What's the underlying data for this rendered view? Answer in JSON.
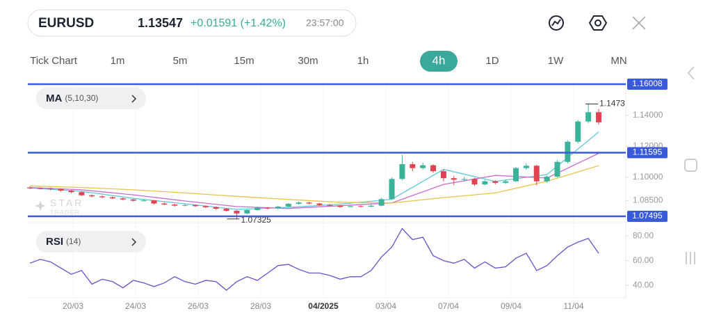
{
  "header": {
    "symbol": "EURUSD",
    "price": "1.13547",
    "change": "+0.01591 (+1.42%)",
    "time": "23:57:00"
  },
  "timeframes": [
    {
      "label": "Tick Chart",
      "selected": false
    },
    {
      "label": "1m",
      "selected": false
    },
    {
      "label": "5m",
      "selected": false
    },
    {
      "label": "15m",
      "selected": false
    },
    {
      "label": "30m",
      "selected": false
    },
    {
      "label": "1h",
      "selected": false
    },
    {
      "label": "4h",
      "selected": true
    },
    {
      "label": "1D",
      "selected": false
    },
    {
      "label": "1W",
      "selected": false
    },
    {
      "label": "MN",
      "selected": false
    }
  ],
  "chart_data": {
    "type": "candlestick",
    "up_color": "#3bb39b",
    "down_color": "#e0434f",
    "candles": [
      [
        1.0935,
        1.0942,
        1.0924,
        1.093
      ],
      [
        1.093,
        1.0936,
        1.0922,
        1.0928
      ],
      [
        1.0928,
        1.0934,
        1.0918,
        1.0925
      ],
      [
        1.0925,
        1.093,
        1.0908,
        1.0915
      ],
      [
        1.0915,
        1.092,
        1.0898,
        1.0905
      ],
      [
        1.0905,
        1.091,
        1.088,
        1.0885
      ],
      [
        1.0885,
        1.0892,
        1.0872,
        1.0878
      ],
      [
        1.0878,
        1.0885,
        1.0866,
        1.0872
      ],
      [
        1.0872,
        1.0878,
        1.086,
        1.0865
      ],
      [
        1.0865,
        1.087,
        1.0852,
        1.0858
      ],
      [
        1.0858,
        1.0862,
        1.0845,
        1.085
      ],
      [
        1.085,
        1.086,
        1.0846,
        1.0852
      ],
      [
        1.0852,
        1.0855,
        1.0826,
        1.0832
      ],
      [
        1.0832,
        1.0838,
        1.082,
        1.0825
      ],
      [
        1.0825,
        1.083,
        1.0812,
        1.0818
      ],
      [
        1.0818,
        1.0828,
        1.0814,
        1.0822
      ],
      [
        1.0822,
        1.0826,
        1.081,
        1.0815
      ],
      [
        1.0815,
        1.082,
        1.0802,
        1.0808
      ],
      [
        1.0808,
        1.0812,
        1.0792,
        1.0798
      ],
      [
        1.0798,
        1.0802,
        1.078,
        1.0785
      ],
      [
        1.0785,
        1.079,
        1.07325,
        1.0768
      ],
      [
        1.0768,
        1.0795,
        1.0762,
        1.079
      ],
      [
        1.079,
        1.0812,
        1.0785,
        1.0805
      ],
      [
        1.0805,
        1.081,
        1.0794,
        1.08
      ],
      [
        1.08,
        1.0818,
        1.0795,
        1.0812
      ],
      [
        1.0812,
        1.0836,
        1.0808,
        1.083
      ],
      [
        1.083,
        1.0845,
        1.0825,
        1.0838
      ],
      [
        1.0838,
        1.0842,
        1.0826,
        1.0832
      ],
      [
        1.0832,
        1.0836,
        1.0816,
        1.0822
      ],
      [
        1.0822,
        1.0828,
        1.0812,
        1.0818
      ],
      [
        1.0818,
        1.0822,
        1.0804,
        1.081
      ],
      [
        1.081,
        1.082,
        1.0806,
        1.0815
      ],
      [
        1.0815,
        1.082,
        1.0806,
        1.0812
      ],
      [
        1.0812,
        1.0824,
        1.0808,
        1.0818
      ],
      [
        1.0818,
        1.0868,
        1.0814,
        1.086
      ],
      [
        1.086,
        1.1,
        1.0855,
        1.099
      ],
      [
        1.099,
        1.1145,
        1.098,
        1.1085
      ],
      [
        1.1085,
        1.11,
        1.104,
        1.106
      ],
      [
        1.106,
        1.1095,
        1.105,
        1.1078
      ],
      [
        1.1078,
        1.1085,
        1.103,
        1.104
      ],
      [
        1.104,
        1.105,
        1.0975,
        1.0995
      ],
      [
        1.0995,
        1.101,
        1.095,
        1.0985
      ],
      [
        1.0985,
        1.1005,
        1.0975,
        1.099
      ],
      [
        1.099,
        1.0998,
        1.0945,
        1.0955
      ],
      [
        1.0955,
        1.0985,
        1.0948,
        1.0975
      ],
      [
        1.0975,
        1.0982,
        1.0955,
        1.0965
      ],
      [
        1.0965,
        1.0985,
        1.0958,
        1.0975
      ],
      [
        1.0975,
        1.1068,
        1.097,
        1.106
      ],
      [
        1.106,
        1.109,
        1.105,
        1.1075
      ],
      [
        1.1075,
        1.1082,
        1.095,
        1.0975
      ],
      [
        1.0975,
        1.1012,
        1.0965,
        1.1005
      ],
      [
        1.1005,
        1.111,
        1.0998,
        1.11
      ],
      [
        1.11,
        1.124,
        1.109,
        1.123
      ],
      [
        1.123,
        1.137,
        1.122,
        1.136
      ],
      [
        1.136,
        1.1473,
        1.135,
        1.142
      ],
      [
        1.142,
        1.144,
        1.134,
        1.1355
      ]
    ],
    "ylim": [
      1.0727,
      1.1614
    ],
    "yticks": [
      {
        "value": 1.14,
        "label": "1.14000"
      },
      {
        "value": 1.12,
        "label": "1.12000"
      },
      {
        "value": 1.1,
        "label": "1.10000"
      },
      {
        "value": 1.085,
        "label": "1.08500"
      }
    ],
    "levels": [
      1.16008,
      1.11595,
      1.07495
    ],
    "level_color": "#3a5bd9",
    "high_label": 1.1473,
    "low_label": 1.07325,
    "dates": [
      "20/03",
      "24/03",
      "26/03",
      "28/03",
      {
        "label": "04/2025",
        "bold": true
      },
      "03/04",
      "07/04",
      "09/04",
      "11/04"
    ],
    "watermark": [
      "STAR",
      "TRADER"
    ],
    "ma": {
      "name": "MA",
      "params": "(5,10,30)",
      "x": [
        0,
        5,
        10,
        15,
        20,
        25,
        30,
        35,
        40,
        45,
        50,
        55
      ],
      "series": [
        {
          "color": "#5cc8d8",
          "values": [
            1.0932,
            1.091,
            1.0865,
            1.083,
            1.0794,
            1.0807,
            1.0828,
            1.0859,
            1.1052,
            1.0974,
            1.1018,
            1.1293
          ]
        },
        {
          "color": "#c86ad0",
          "values": [
            1.0935,
            1.092,
            1.0888,
            1.0848,
            1.0812,
            1.08,
            1.0818,
            1.0836,
            1.0955,
            1.1013,
            1.0996,
            1.1155
          ]
        },
        {
          "color": "#e8c44a",
          "values": [
            1.0945,
            1.0935,
            1.092,
            1.09,
            1.0878,
            1.0858,
            1.084,
            1.0835,
            1.087,
            1.09,
            1.0975,
            1.1075
          ]
        }
      ]
    },
    "rsi": {
      "name": "RSI",
      "params": "(14)",
      "color": "#6a4fc8",
      "ylim": [
        30,
        88
      ],
      "yticks": [
        {
          "value": 80,
          "label": "80.00"
        },
        {
          "value": 60,
          "label": "60.00"
        },
        {
          "value": 40,
          "label": "40.00"
        }
      ],
      "values": [
        58,
        61,
        59,
        54,
        49,
        52,
        41,
        45,
        43,
        38,
        44,
        42,
        39,
        42,
        47,
        43,
        41,
        44,
        43,
        36,
        43,
        47,
        44,
        50,
        56,
        57,
        53,
        50,
        50,
        48,
        45,
        47,
        47,
        52,
        63,
        71,
        86,
        77,
        79,
        64,
        60,
        58,
        61,
        54,
        59,
        54,
        55,
        62,
        66,
        52,
        56,
        64,
        71,
        75,
        78,
        66
      ]
    }
  }
}
